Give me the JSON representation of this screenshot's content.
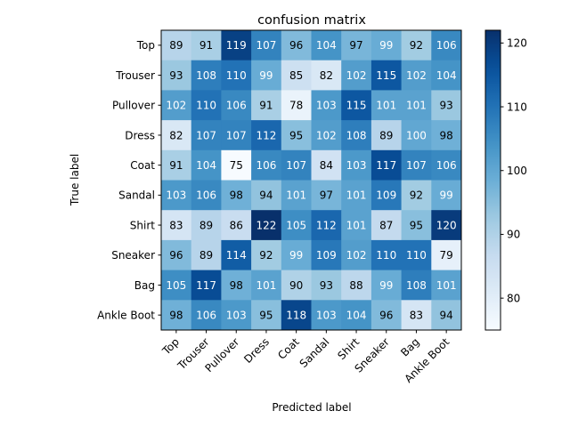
{
  "chart_data": {
    "type": "heatmap",
    "title": "confusion matrix",
    "xlabel": "Predicted label",
    "ylabel": "True label",
    "x_categories": [
      "Top",
      "Trouser",
      "Pullover",
      "Dress",
      "Coat",
      "Sandal",
      "Shirt",
      "Sneaker",
      "Bag",
      "Ankle Boot"
    ],
    "y_categories": [
      "Top",
      "Trouser",
      "Pullover",
      "Dress",
      "Coat",
      "Sandal",
      "Shirt",
      "Sneaker",
      "Bag",
      "Ankle Boot"
    ],
    "values": [
      [
        89,
        91,
        119,
        107,
        96,
        104,
        97,
        99,
        92,
        106
      ],
      [
        93,
        108,
        110,
        99,
        85,
        82,
        102,
        115,
        102,
        104
      ],
      [
        102,
        110,
        106,
        91,
        78,
        103,
        115,
        101,
        101,
        93
      ],
      [
        82,
        107,
        107,
        112,
        95,
        102,
        108,
        89,
        100,
        98
      ],
      [
        91,
        104,
        75,
        106,
        107,
        84,
        103,
        117,
        107,
        106
      ],
      [
        103,
        106,
        98,
        94,
        101,
        97,
        101,
        109,
        92,
        99
      ],
      [
        83,
        89,
        86,
        122,
        105,
        112,
        101,
        87,
        95,
        120
      ],
      [
        96,
        89,
        114,
        92,
        99,
        109,
        102,
        110,
        110,
        79
      ],
      [
        105,
        117,
        98,
        101,
        90,
        93,
        88,
        99,
        108,
        101
      ],
      [
        98,
        106,
        103,
        95,
        118,
        103,
        104,
        96,
        83,
        94
      ]
    ],
    "colormap": "Blues",
    "vmin": 75,
    "vmax": 122,
    "colorbar_ticks": [
      80,
      90,
      100,
      110,
      120
    ],
    "x_tick_rotation": 45,
    "grid": false
  }
}
